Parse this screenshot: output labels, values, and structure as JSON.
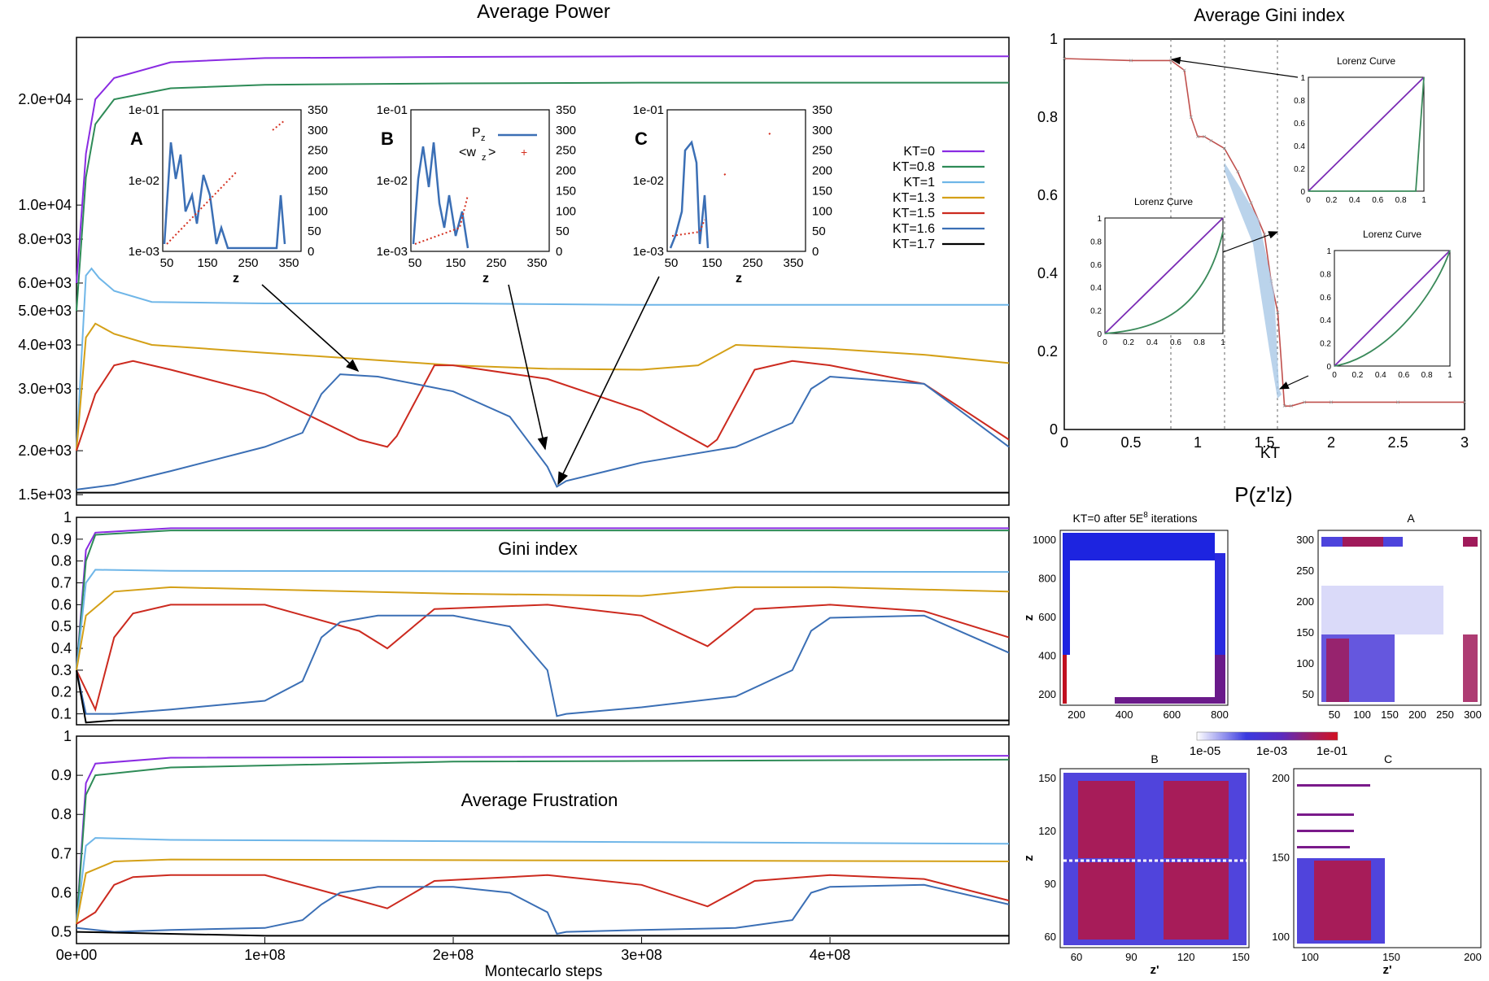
{
  "chart_data": [
    {
      "id": "power",
      "type": "line",
      "title": "Average Power",
      "xlabel": "",
      "ylabel": "",
      "yscale": "log",
      "xlim": [
        0,
        495000000.0
      ],
      "ylim": [
        1400,
        30000
      ],
      "xticks": [
        "0e+00",
        "1e+08",
        "2e+08",
        "3e+08",
        "4e+08"
      ],
      "ytick_values": [
        1500,
        2000,
        3000,
        4000,
        5000,
        6000,
        8000,
        10000,
        20000
      ],
      "ytick_labels": [
        "1.5e+03",
        "2.0e+03",
        "3.0e+03",
        "4.0e+03",
        "5.0e+03",
        "6.0e+03",
        "8.0e+03",
        "1.0e+04",
        "2.0e+04"
      ],
      "legend_position": "right",
      "annotation_arrows": [
        "A",
        "B",
        "C"
      ],
      "series": [
        {
          "name": "KT=0",
          "color": "#8a2be2",
          "x": [
            0,
            0.005,
            0.01,
            0.02,
            0.05,
            0.1,
            0.2,
            0.3,
            0.4,
            0.495
          ],
          "values": [
            6000,
            14000,
            20000,
            23000,
            25500,
            26200,
            26400,
            26500,
            26500,
            26500
          ]
        },
        {
          "name": "KT=0.8",
          "color": "#2e8b57",
          "x": [
            0,
            0.005,
            0.01,
            0.02,
            0.05,
            0.1,
            0.2,
            0.3,
            0.4,
            0.495
          ],
          "values": [
            5000,
            12000,
            17000,
            20000,
            21500,
            22000,
            22200,
            22300,
            22300,
            22300
          ]
        },
        {
          "name": "KT=1",
          "color": "#6fb6e8",
          "x": [
            0,
            0.005,
            0.008,
            0.012,
            0.02,
            0.04,
            0.1,
            0.2,
            0.3,
            0.4,
            0.495
          ],
          "values": [
            2000,
            6300,
            6600,
            6200,
            5700,
            5300,
            5250,
            5250,
            5200,
            5200,
            5200
          ]
        },
        {
          "name": "KT=1.3",
          "color": "#d4a017",
          "x": [
            0,
            0.005,
            0.01,
            0.02,
            0.04,
            0.1,
            0.15,
            0.2,
            0.25,
            0.3,
            0.33,
            0.35,
            0.4,
            0.45,
            0.495
          ],
          "values": [
            2000,
            4200,
            4600,
            4300,
            4000,
            3800,
            3650,
            3500,
            3420,
            3400,
            3500,
            4000,
            3900,
            3750,
            3550
          ]
        },
        {
          "name": "KT=1.5",
          "color": "#cc2a1f",
          "x": [
            0,
            0.01,
            0.02,
            0.03,
            0.05,
            0.1,
            0.15,
            0.165,
            0.17,
            0.19,
            0.2,
            0.25,
            0.3,
            0.335,
            0.34,
            0.36,
            0.38,
            0.4,
            0.45,
            0.495
          ],
          "values": [
            2000,
            2900,
            3500,
            3600,
            3400,
            2900,
            2150,
            2050,
            2200,
            3500,
            3500,
            3200,
            2600,
            2050,
            2150,
            3400,
            3600,
            3500,
            3100,
            2150
          ]
        },
        {
          "name": "KT=1.6",
          "color": "#3b6fb5",
          "x": [
            0,
            0.02,
            0.05,
            0.1,
            0.12,
            0.13,
            0.14,
            0.16,
            0.2,
            0.23,
            0.25,
            0.255,
            0.26,
            0.3,
            0.35,
            0.38,
            0.39,
            0.4,
            0.45,
            0.495
          ],
          "values": [
            1550,
            1600,
            1750,
            2050,
            2250,
            2900,
            3300,
            3250,
            2950,
            2500,
            1800,
            1580,
            1640,
            1850,
            2050,
            2400,
            3000,
            3250,
            3100,
            2050
          ]
        },
        {
          "name": "KT=1.7",
          "color": "#000000",
          "x": [
            0,
            0.1,
            0.2,
            0.3,
            0.4,
            0.495
          ],
          "values": [
            1520,
            1520,
            1520,
            1520,
            1520,
            1520
          ]
        }
      ],
      "insets": [
        {
          "label": "A",
          "xlabel": "z",
          "xticks": [
            "50",
            "150",
            "250",
            "350"
          ],
          "yleft": [
            "1e-01",
            "1e-02",
            "1e-03"
          ],
          "yright": [
            "350",
            "300",
            "250",
            "200",
            "150",
            "100",
            "50",
            "0"
          ]
        },
        {
          "label": "B",
          "xlabel": "z",
          "xticks": [
            "50",
            "150",
            "250",
            "350"
          ],
          "yleft": [
            "1e-01",
            "1e-02",
            "1e-03"
          ],
          "yright": [
            "350",
            "300",
            "250",
            "200",
            "150",
            "100",
            "50",
            "0"
          ],
          "legend": [
            "P",
            "z",
            "<w",
            "z",
            ">"
          ]
        },
        {
          "label": "C",
          "xlabel": "z",
          "xticks": [
            "50",
            "150",
            "250",
            "350"
          ],
          "yleft": [
            "1e-01",
            "1e-02",
            "1e-03"
          ],
          "yright": [
            "350",
            "300",
            "250",
            "200",
            "150",
            "100",
            "50",
            "0"
          ]
        }
      ]
    },
    {
      "id": "gini",
      "type": "line",
      "title": "Gini index",
      "xlim": [
        0,
        495000000.0
      ],
      "ylim": [
        0.05,
        1.0
      ],
      "yticks": [
        "1",
        "0.9",
        "0.8",
        "0.7",
        "0.6",
        "0.5",
        "0.4",
        "0.3",
        "0.2",
        "0.1"
      ],
      "series": [
        {
          "name": "KT=0",
          "color": "#8a2be2",
          "x": [
            0,
            0.005,
            0.01,
            0.05,
            0.495
          ],
          "values": [
            0.3,
            0.85,
            0.93,
            0.95,
            0.95
          ]
        },
        {
          "name": "KT=0.8",
          "color": "#2e8b57",
          "x": [
            0,
            0.005,
            0.01,
            0.05,
            0.495
          ],
          "values": [
            0.3,
            0.8,
            0.92,
            0.94,
            0.94
          ]
        },
        {
          "name": "KT=1",
          "color": "#6fb6e8",
          "x": [
            0,
            0.005,
            0.01,
            0.05,
            0.495
          ],
          "values": [
            0.3,
            0.7,
            0.76,
            0.755,
            0.75
          ]
        },
        {
          "name": "KT=1.3",
          "color": "#d4a017",
          "x": [
            0,
            0.005,
            0.02,
            0.05,
            0.2,
            0.3,
            0.35,
            0.4,
            0.495
          ],
          "values": [
            0.3,
            0.55,
            0.66,
            0.68,
            0.65,
            0.64,
            0.68,
            0.68,
            0.66
          ]
        },
        {
          "name": "KT=1.5",
          "color": "#cc2a1f",
          "x": [
            0,
            0.01,
            0.02,
            0.03,
            0.05,
            0.1,
            0.15,
            0.165,
            0.19,
            0.25,
            0.3,
            0.335,
            0.36,
            0.4,
            0.45,
            0.495
          ],
          "values": [
            0.3,
            0.12,
            0.45,
            0.56,
            0.6,
            0.6,
            0.48,
            0.4,
            0.58,
            0.6,
            0.55,
            0.41,
            0.58,
            0.6,
            0.57,
            0.45
          ]
        },
        {
          "name": "KT=1.6",
          "color": "#3b6fb5",
          "x": [
            0,
            0.005,
            0.02,
            0.05,
            0.1,
            0.12,
            0.13,
            0.14,
            0.16,
            0.2,
            0.23,
            0.25,
            0.255,
            0.26,
            0.3,
            0.35,
            0.38,
            0.39,
            0.4,
            0.45,
            0.495
          ],
          "values": [
            0.3,
            0.1,
            0.1,
            0.12,
            0.16,
            0.25,
            0.45,
            0.52,
            0.55,
            0.55,
            0.5,
            0.3,
            0.09,
            0.1,
            0.13,
            0.18,
            0.3,
            0.48,
            0.54,
            0.55,
            0.38
          ]
        },
        {
          "name": "KT=1.7",
          "color": "#000000",
          "x": [
            0,
            0.005,
            0.02,
            0.1,
            0.2,
            0.3,
            0.4,
            0.495
          ],
          "values": [
            0.3,
            0.06,
            0.07,
            0.07,
            0.07,
            0.07,
            0.07,
            0.07
          ]
        }
      ]
    },
    {
      "id": "frustration",
      "type": "line",
      "title": "Average Frustration",
      "xlabel": "Montecarlo steps",
      "xlim": [
        0,
        495000000.0
      ],
      "ylim": [
        0.47,
        1.0
      ],
      "xticks": [
        "0e+00",
        "1e+08",
        "2e+08",
        "3e+08",
        "4e+08"
      ],
      "yticks": [
        "1",
        "0.9",
        "0.8",
        "0.7",
        "0.6",
        "0.5"
      ],
      "series": [
        {
          "name": "KT=0",
          "color": "#8a2be2",
          "x": [
            0,
            0.005,
            0.01,
            0.05,
            0.495
          ],
          "values": [
            0.52,
            0.88,
            0.93,
            0.945,
            0.95
          ]
        },
        {
          "name": "KT=0.8",
          "color": "#2e8b57",
          "x": [
            0,
            0.005,
            0.01,
            0.05,
            0.2,
            0.495
          ],
          "values": [
            0.52,
            0.85,
            0.9,
            0.92,
            0.935,
            0.94
          ]
        },
        {
          "name": "KT=1",
          "color": "#6fb6e8",
          "x": [
            0,
            0.005,
            0.01,
            0.05,
            0.495
          ],
          "values": [
            0.52,
            0.72,
            0.74,
            0.735,
            0.725
          ]
        },
        {
          "name": "KT=1.3",
          "color": "#d4a017",
          "x": [
            0,
            0.005,
            0.02,
            0.05,
            0.495
          ],
          "values": [
            0.52,
            0.65,
            0.68,
            0.685,
            0.68
          ]
        },
        {
          "name": "KT=1.5",
          "color": "#cc2a1f",
          "x": [
            0,
            0.01,
            0.02,
            0.03,
            0.05,
            0.1,
            0.15,
            0.165,
            0.19,
            0.25,
            0.3,
            0.335,
            0.36,
            0.4,
            0.45,
            0.495
          ],
          "values": [
            0.52,
            0.55,
            0.62,
            0.64,
            0.645,
            0.645,
            0.58,
            0.56,
            0.63,
            0.645,
            0.62,
            0.565,
            0.63,
            0.645,
            0.635,
            0.58
          ]
        },
        {
          "name": "KT=1.6",
          "color": "#3b6fb5",
          "x": [
            0,
            0.02,
            0.05,
            0.1,
            0.12,
            0.13,
            0.14,
            0.16,
            0.2,
            0.23,
            0.25,
            0.255,
            0.26,
            0.3,
            0.35,
            0.38,
            0.39,
            0.4,
            0.45,
            0.495
          ],
          "values": [
            0.51,
            0.5,
            0.505,
            0.51,
            0.53,
            0.57,
            0.6,
            0.615,
            0.615,
            0.6,
            0.55,
            0.495,
            0.5,
            0.505,
            0.51,
            0.53,
            0.6,
            0.615,
            0.62,
            0.57
          ]
        },
        {
          "name": "KT=1.7",
          "color": "#000000",
          "x": [
            0,
            0.1,
            0.2,
            0.3,
            0.4,
            0.495
          ],
          "values": [
            0.5,
            0.49,
            0.49,
            0.49,
            0.49,
            0.49
          ]
        }
      ]
    },
    {
      "id": "avg-gini-kt",
      "type": "line",
      "title": "Average Gini index",
      "xlabel": "KT",
      "xlim": [
        0,
        3
      ],
      "ylim": [
        0,
        1
      ],
      "xticks": [
        "0",
        "0.5",
        "1",
        "1.5",
        "2",
        "2.5",
        "3"
      ],
      "yticks": [
        "1",
        "0.8",
        "0.6",
        "0.4",
        "0.2",
        "0"
      ],
      "series": [
        {
          "name": "Gini",
          "color": "#c0504d",
          "x": [
            0,
            0.5,
            0.8,
            0.9,
            0.95,
            1.0,
            1.05,
            1.1,
            1.2,
            1.3,
            1.4,
            1.5,
            1.55,
            1.6,
            1.65,
            1.7,
            1.8,
            2,
            2.5,
            3
          ],
          "values": [
            0.95,
            0.945,
            0.945,
            0.92,
            0.8,
            0.75,
            0.75,
            0.74,
            0.72,
            0.66,
            0.58,
            0.5,
            0.38,
            0.3,
            0.06,
            0.06,
            0.07,
            0.07,
            0.07,
            0.07
          ]
        }
      ],
      "dashed_x": [
        0.8,
        1.2,
        1.6
      ],
      "insets": [
        {
          "title": "Lorenz Curve",
          "xticks": [
            "0",
            "0.2",
            "0.4",
            "0.6",
            "0.8",
            "1"
          ],
          "yticks": [
            "1",
            "0.8",
            "0.6",
            "0.4",
            "0.2",
            "0"
          ]
        },
        {
          "title": "Lorenz Curve",
          "xticks": [
            "0",
            "0.2",
            "0.4",
            "0.6",
            "0.8",
            "1"
          ],
          "yticks": [
            "1",
            "0.8",
            "0.6",
            "0.4",
            "0.2",
            "0"
          ]
        },
        {
          "title": "Lorenz Curve",
          "xticks": [
            "0",
            "0.2",
            "0.4",
            "0.6",
            "0.8",
            "1"
          ],
          "yticks": [
            "1",
            "0.8",
            "0.6",
            "0.4",
            "0.2",
            "0"
          ]
        }
      ]
    },
    {
      "id": "pzz",
      "type": "heatmap",
      "title": "P(z'lz)",
      "colorbar_ticks": [
        "1e-05",
        "1e-03",
        "1e-01"
      ],
      "panels": [
        {
          "title": "KT=0 after 5E",
          "title_sup": "8",
          "title_end": " iterations",
          "ylabel": "z",
          "xticks": [
            "200",
            "400",
            "600",
            "800"
          ],
          "yticks": [
            "1000",
            "800",
            "600",
            "400",
            "200"
          ]
        },
        {
          "title": "A",
          "xticks": [
            "50",
            "100",
            "150",
            "200",
            "250",
            "300"
          ],
          "yticks": [
            "300",
            "250",
            "200",
            "150",
            "100",
            "50"
          ]
        },
        {
          "title": "B",
          "xlabel": "z'",
          "ylabel": "z",
          "xticks": [
            "60",
            "90",
            "120",
            "150"
          ],
          "yticks": [
            "150",
            "120",
            "90",
            "60"
          ]
        },
        {
          "title": "C",
          "xlabel": "z'",
          "xticks": [
            "100",
            "150",
            "200"
          ],
          "yticks": [
            "200",
            "150",
            "100"
          ]
        }
      ]
    }
  ]
}
